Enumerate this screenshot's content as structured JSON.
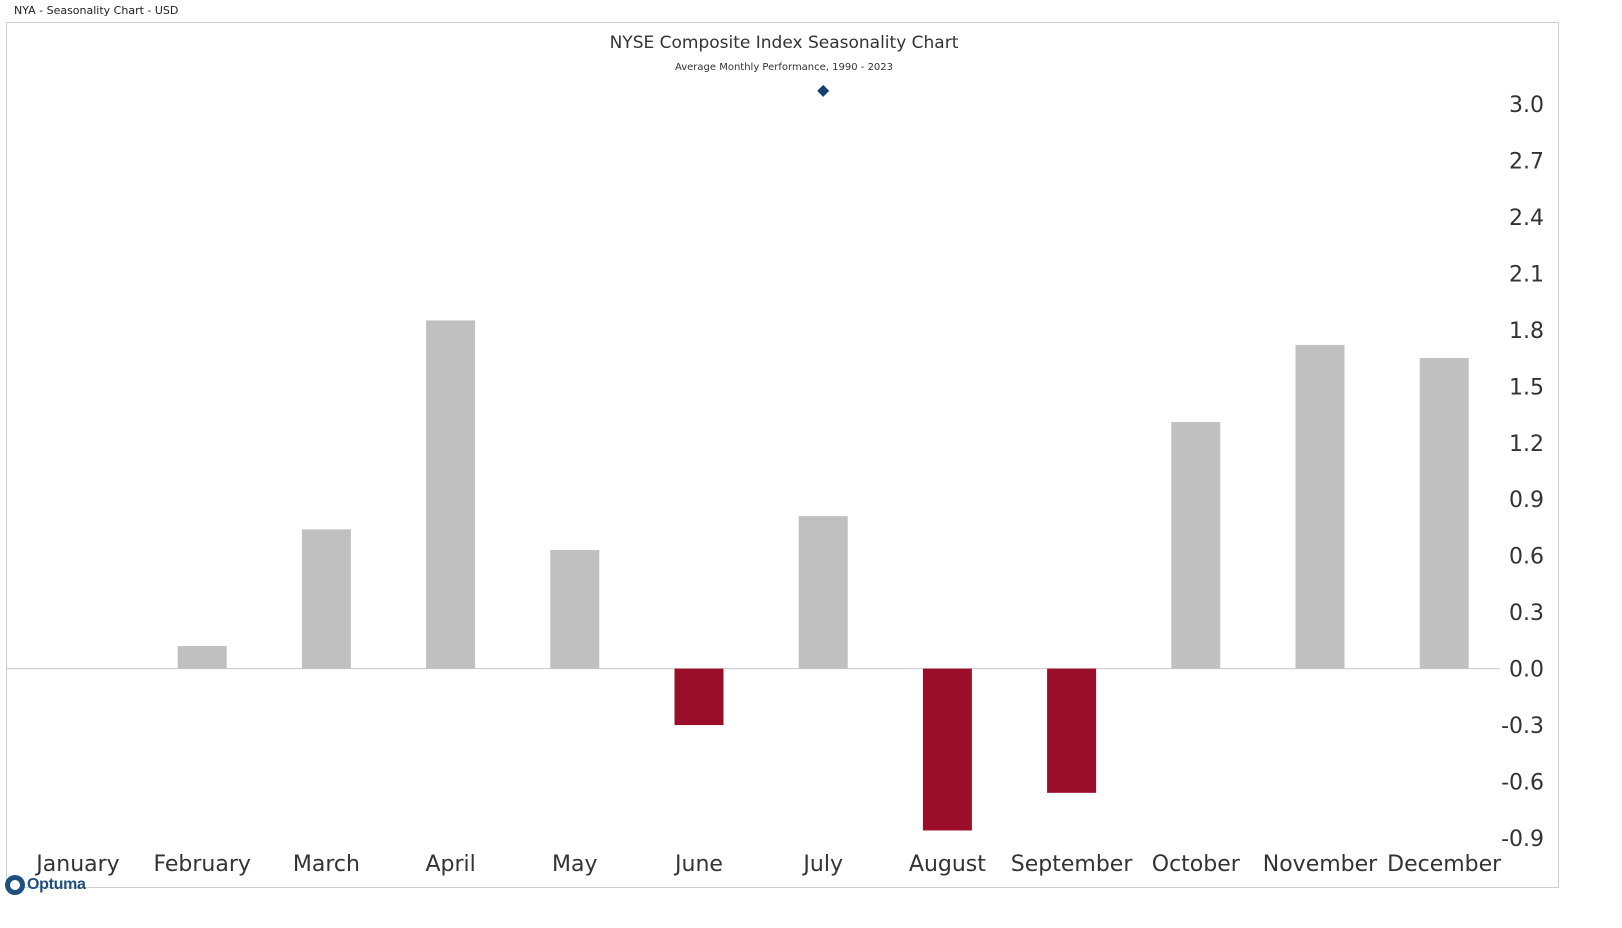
{
  "header": {
    "label": "NYA - Seasonality Chart - USD"
  },
  "logo": {
    "text": "Optuma"
  },
  "chart_data": {
    "type": "bar",
    "title": "NYSE Composite Index Seasonality Chart",
    "subtitle": "Average Monthly Performance, 1990 - 2023",
    "categories": [
      "January",
      "February",
      "March",
      "April",
      "May",
      "June",
      "July",
      "August",
      "September",
      "October",
      "November",
      "December"
    ],
    "values": [
      0.0,
      0.12,
      0.74,
      1.85,
      0.63,
      -0.3,
      0.81,
      -0.86,
      -0.66,
      1.31,
      1.72,
      1.65
    ],
    "ylim": [
      -0.9,
      3.0
    ],
    "yticks": [
      "3.0",
      "2.7",
      "2.4",
      "2.1",
      "1.8",
      "1.5",
      "1.2",
      "0.9",
      "0.6",
      "0.3",
      "0.0",
      "-0.3",
      "-0.6",
      "-0.9"
    ],
    "marker": {
      "category": "July",
      "value": 3.07,
      "shape": "diamond",
      "color": "#17406d"
    },
    "positive_color": "#c0c0c0",
    "negative_color": "#9b0e2a",
    "axis_position": "right",
    "grid": false
  }
}
